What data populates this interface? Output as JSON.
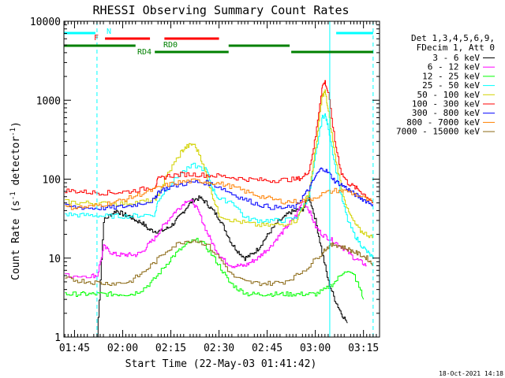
{
  "chart_data": {
    "type": "line",
    "title": "RHESSI Observing Summary Count Rates",
    "xlabel": "Start Time (22-May-03 01:41:42)",
    "ylabel_main": "Count Rate (s",
    "ylabel_sup1": "-1",
    "ylabel_mid": " detector",
    "ylabel_sup2": "-1",
    "ylabel_end": ")",
    "footer": "18-Oct-2021 14:18",
    "x_ticks": [
      "01:45",
      "02:00",
      "02:15",
      "02:30",
      "02:45",
      "03:00",
      "03:15"
    ],
    "y_ticks": [
      "1",
      "10",
      "100",
      "1000",
      "10000"
    ],
    "x_range_minutes": [
      101.7,
      200
    ],
    "y_log_range": [
      1,
      10000
    ],
    "y_scale": "log",
    "legend_placement": "right",
    "legend_header": [
      "Det 1,3,4,5,6,9,",
      "FDecim 1, Att 0"
    ],
    "series": [
      {
        "name": "3 - 6 keV",
        "color": "#000000",
        "x": [
          112,
          114,
          116,
          118,
          120,
          122,
          124,
          126,
          128,
          130,
          132,
          134,
          136,
          138,
          140,
          142,
          144,
          146,
          148,
          150,
          152,
          154,
          156,
          158,
          160,
          162,
          164,
          166,
          168,
          170,
          172,
          174,
          176,
          178,
          180,
          182,
          184,
          186,
          188,
          190
        ],
        "y": [
          1,
          30,
          35,
          40,
          36,
          34,
          30,
          28,
          23,
          22,
          22,
          24,
          28,
          35,
          45,
          55,
          58,
          50,
          40,
          32,
          22,
          15,
          12,
          10,
          11,
          13,
          17,
          22,
          28,
          32,
          38,
          40,
          42,
          60,
          30,
          12,
          5,
          3,
          2,
          1.5
        ]
      },
      {
        "name": "6 - 12 keV",
        "color": "#ff00ff",
        "x": [
          102,
          110,
          112,
          114,
          116,
          118,
          120,
          122,
          124,
          126,
          128,
          130,
          132,
          134,
          136,
          138,
          140,
          142,
          144,
          146,
          148,
          150,
          152,
          154,
          156,
          158,
          160,
          162,
          164,
          166,
          168,
          170,
          172,
          174,
          176,
          178,
          180,
          182,
          184,
          186,
          188,
          190,
          192,
          194,
          196
        ],
        "y": [
          6,
          6,
          6,
          14,
          12,
          11,
          11,
          11,
          11,
          12,
          15,
          18,
          24,
          30,
          38,
          45,
          55,
          50,
          35,
          22,
          15,
          11,
          9,
          8,
          8,
          8,
          9,
          10,
          12,
          14,
          18,
          22,
          28,
          35,
          55,
          40,
          25,
          20,
          18,
          16,
          14,
          12,
          10,
          9,
          8
        ]
      },
      {
        "name": "12 - 25 keV",
        "color": "#00ff00",
        "x": [
          102,
          105,
          108,
          111,
          114,
          117,
          120,
          123,
          126,
          129,
          132,
          135,
          138,
          141,
          144,
          147,
          150,
          153,
          156,
          159,
          162,
          165,
          168,
          171,
          174,
          177,
          180,
          183,
          186,
          189,
          192,
          195
        ],
        "y": [
          3.5,
          3.5,
          3.5,
          3.5,
          3.5,
          3.5,
          3.5,
          3.5,
          4,
          5,
          7,
          10,
          13,
          16,
          17,
          12,
          8,
          5,
          4,
          3.5,
          3.5,
          3.5,
          3.5,
          3.5,
          3.5,
          3.5,
          3.5,
          4,
          5,
          7,
          6,
          3
        ]
      },
      {
        "name": "25 - 50 keV",
        "color": "#00ffff",
        "x": [
          102,
          106,
          110,
          114,
          118,
          122,
          126,
          130,
          131,
          134,
          138,
          142,
          146,
          148,
          150,
          154,
          158,
          162,
          166,
          170,
          174,
          176,
          178,
          180,
          182,
          183,
          184,
          186,
          188,
          190,
          192,
          194,
          196,
          198
        ],
        "y": [
          36,
          35,
          35,
          34,
          34,
          34,
          35,
          36,
          55,
          80,
          120,
          150,
          130,
          75,
          55,
          52,
          32,
          30,
          30,
          30,
          32,
          45,
          60,
          200,
          600,
          650,
          450,
          150,
          60,
          30,
          20,
          15,
          12,
          10
        ]
      },
      {
        "name": "50 - 100 keV",
        "color": "#d2d200",
        "x": [
          102,
          106,
          110,
          114,
          118,
          122,
          126,
          130,
          131,
          134,
          138,
          140,
          142,
          144,
          146,
          148,
          150,
          154,
          158,
          162,
          166,
          170,
          174,
          176,
          178,
          180,
          182,
          183,
          184,
          186,
          188,
          190,
          192,
          194,
          196,
          198
        ],
        "y": [
          52,
          50,
          50,
          49,
          49,
          50,
          52,
          54,
          65,
          120,
          220,
          260,
          280,
          200,
          110,
          60,
          35,
          30,
          28,
          26,
          26,
          27,
          30,
          45,
          70,
          250,
          1100,
          1300,
          700,
          200,
          80,
          40,
          28,
          22,
          20,
          18
        ]
      },
      {
        "name": "100 - 300 keV",
        "color": "#ff0000",
        "x": [
          102,
          106,
          110,
          114,
          118,
          122,
          126,
          130,
          131,
          134,
          138,
          142,
          146,
          150,
          154,
          158,
          162,
          166,
          170,
          174,
          176,
          178,
          180,
          182,
          183,
          184,
          186,
          188,
          190,
          192,
          194,
          196,
          198
        ],
        "y": [
          72,
          70,
          68,
          67,
          68,
          70,
          75,
          80,
          100,
          110,
          115,
          115,
          112,
          110,
          105,
          100,
          98,
          96,
          98,
          100,
          105,
          130,
          350,
          1500,
          1700,
          1200,
          300,
          120,
          90,
          80,
          70,
          60,
          50
        ]
      },
      {
        "name": "300 - 800 keV",
        "color": "#0000ff",
        "x": [
          102,
          106,
          110,
          114,
          118,
          122,
          126,
          130,
          131,
          134,
          138,
          142,
          146,
          150,
          154,
          158,
          162,
          166,
          170,
          174,
          176,
          178,
          180,
          182,
          184,
          186,
          188,
          190,
          192,
          194,
          196,
          198
        ],
        "y": [
          45,
          44,
          43,
          43,
          44,
          46,
          50,
          55,
          70,
          78,
          86,
          92,
          90,
          80,
          65,
          55,
          48,
          44,
          43,
          45,
          60,
          75,
          110,
          140,
          120,
          95,
          85,
          75,
          65,
          58,
          52,
          48
        ]
      },
      {
        "name": "800 - 7000 keV",
        "color": "#ff8000",
        "x": [
          102,
          106,
          110,
          114,
          118,
          122,
          126,
          130,
          134,
          138,
          142,
          146,
          150,
          154,
          158,
          162,
          166,
          170,
          174,
          178,
          182,
          186,
          190,
          194,
          198
        ],
        "y": [
          44,
          44,
          45,
          48,
          52,
          58,
          66,
          75,
          85,
          92,
          95,
          93,
          88,
          80,
          70,
          62,
          56,
          52,
          52,
          55,
          65,
          72,
          70,
          60,
          50
        ]
      },
      {
        "name": "7000 - 15000 keV",
        "color": "#8b6914",
        "x": [
          102,
          106,
          110,
          114,
          118,
          122,
          126,
          130,
          134,
          138,
          142,
          146,
          150,
          154,
          158,
          162,
          166,
          170,
          174,
          178,
          182,
          184,
          186,
          188,
          190,
          192,
          194,
          196,
          198
        ],
        "y": [
          5.5,
          5.2,
          5.0,
          4.8,
          4.8,
          5.0,
          6.5,
          9,
          13,
          16,
          17,
          15,
          10,
          6,
          5,
          4.8,
          4.8,
          5.0,
          6.0,
          8,
          12,
          14,
          15,
          14,
          13,
          12,
          11,
          10,
          8
        ]
      }
    ],
    "flag_bars": [
      {
        "label": "N",
        "color": "#00ffff",
        "segments": [
          [
            101.7,
            111.5
          ],
          [
            186.5,
            198
          ]
        ]
      },
      {
        "label": "F",
        "color": "#ff0000",
        "segments": [
          [
            114.5,
            128.5
          ],
          [
            133,
            150
          ]
        ]
      },
      {
        "label": "RD0",
        "color": "#008000",
        "segments": [
          [
            101.7,
            124
          ],
          [
            153,
            172
          ]
        ]
      },
      {
        "label": "RD4",
        "color": "#008000",
        "segments": [
          [
            130,
            153
          ],
          [
            172.5,
            198
          ]
        ]
      }
    ],
    "vertical_markers": [
      {
        "x": 101.7,
        "color": "#00ffff",
        "style": "solid"
      },
      {
        "x": 112,
        "color": "#00ffff",
        "style": "dashed"
      },
      {
        "x": 184.5,
        "color": "#00ffff",
        "style": "solid"
      },
      {
        "x": 198,
        "color": "#00ffff",
        "style": "dashed"
      }
    ]
  }
}
